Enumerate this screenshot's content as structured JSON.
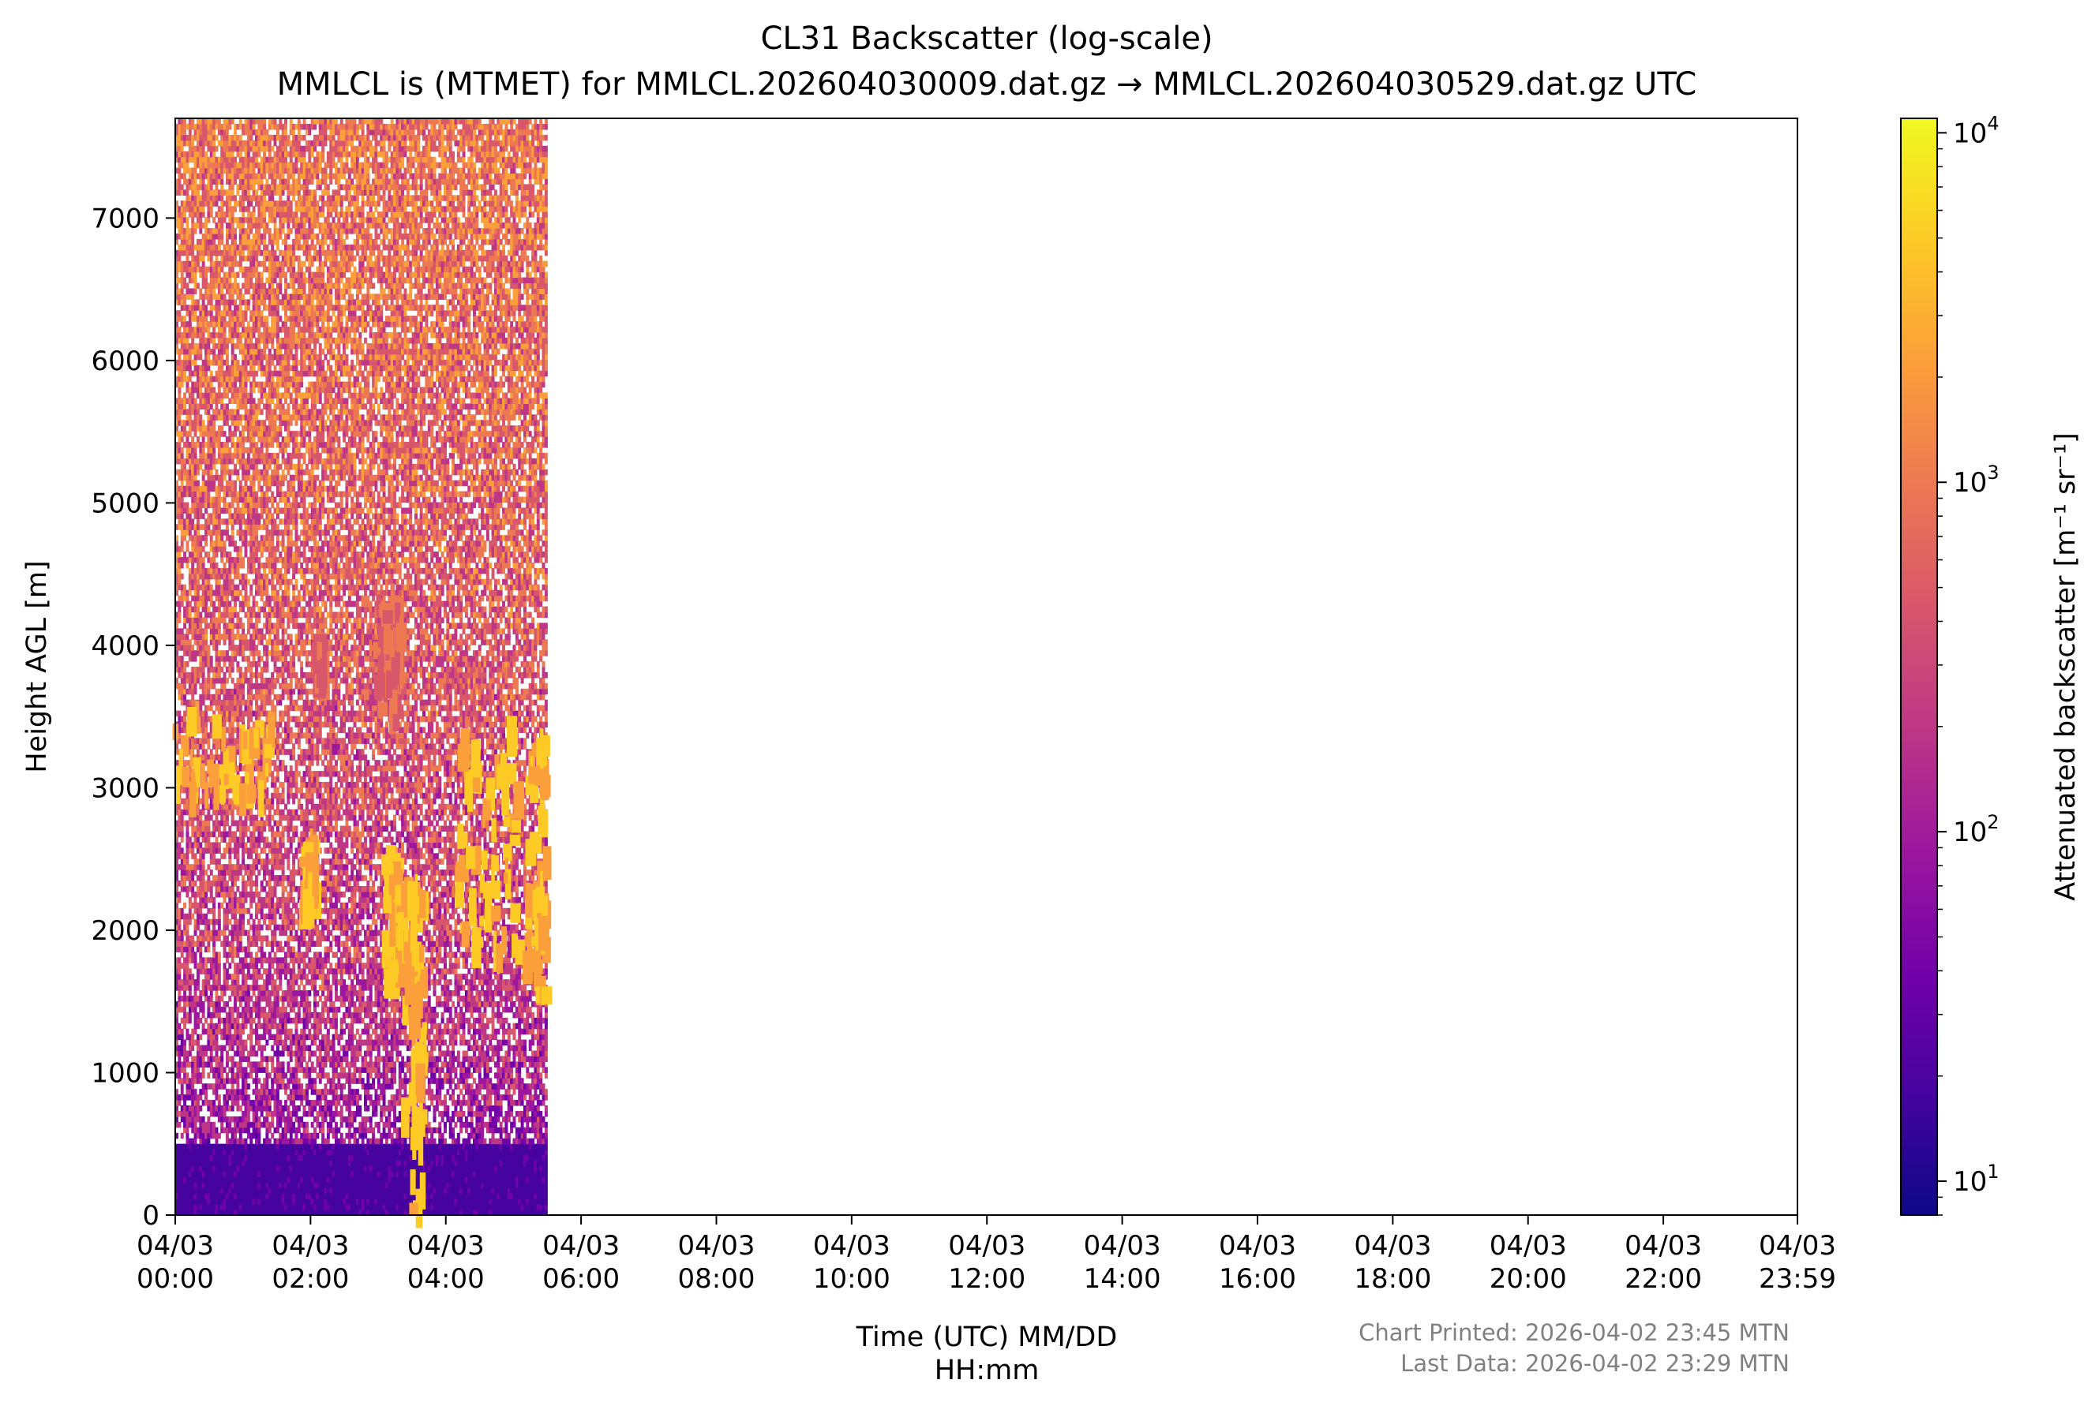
{
  "chart_data": {
    "type": "heatmap",
    "title": "CL31 Backscatter (log-scale)",
    "subtitle": "MMLCL is (MTMET) for MMLCL.202604030009.dat.gz → MMLCL.202604030529.dat.gz UTC",
    "xlabel_line1": "Time (UTC) MM/DD",
    "xlabel_line2": "HH:mm",
    "ylabel": "Height AGL [m]",
    "x_ticks": [
      {
        "hours": 0,
        "date": "04/03",
        "time": "00:00"
      },
      {
        "hours": 2,
        "date": "04/03",
        "time": "02:00"
      },
      {
        "hours": 4,
        "date": "04/03",
        "time": "04:00"
      },
      {
        "hours": 6,
        "date": "04/03",
        "time": "06:00"
      },
      {
        "hours": 8,
        "date": "04/03",
        "time": "08:00"
      },
      {
        "hours": 10,
        "date": "04/03",
        "time": "10:00"
      },
      {
        "hours": 12,
        "date": "04/03",
        "time": "12:00"
      },
      {
        "hours": 14,
        "date": "04/03",
        "time": "14:00"
      },
      {
        "hours": 16,
        "date": "04/03",
        "time": "16:00"
      },
      {
        "hours": 18,
        "date": "04/03",
        "time": "18:00"
      },
      {
        "hours": 20,
        "date": "04/03",
        "time": "20:00"
      },
      {
        "hours": 22,
        "date": "04/03",
        "time": "22:00"
      },
      {
        "hours": 23.983,
        "date": "04/03",
        "time": "23:59"
      }
    ],
    "xlim_hours": [
      0,
      23.983
    ],
    "y_ticks": [
      0,
      1000,
      2000,
      3000,
      4000,
      5000,
      6000,
      7000
    ],
    "ylim": [
      0,
      7700
    ],
    "data_time_range_hours": [
      0.0,
      5.5
    ],
    "colorbar": {
      "label": "Attenuated backscatter [m⁻¹ sr⁻¹]",
      "scale": "log",
      "range": [
        8,
        11000
      ],
      "ticks": [
        {
          "value": 10,
          "label": "10",
          "exp": "1"
        },
        {
          "value": 100,
          "label": "10",
          "exp": "2"
        },
        {
          "value": 1000,
          "label": "10",
          "exp": "3"
        },
        {
          "value": 10000,
          "label": "10",
          "exp": "4"
        }
      ],
      "colormap": "plasma",
      "colors": [
        "#0d0887",
        "#46039f",
        "#7201a8",
        "#9c179e",
        "#bd3786",
        "#d8576b",
        "#ed7953",
        "#fb9f3a",
        "#fdca26",
        "#f0f921"
      ]
    },
    "surface_layer": {
      "height_range": [
        0,
        480
      ],
      "value": 20
    },
    "features": [
      {
        "label": "cloud",
        "t": [
          0.0,
          1.5
        ],
        "h": [
          2900,
          3500
        ],
        "value": 3000
      },
      {
        "label": "cloud",
        "t": [
          1.9,
          2.1
        ],
        "h": [
          2100,
          2600
        ],
        "value": 3000
      },
      {
        "label": "cloud",
        "t": [
          3.1,
          3.4
        ],
        "h": [
          1600,
          2500
        ],
        "value": 3500
      },
      {
        "label": "cloud",
        "t": [
          3.4,
          3.7
        ],
        "h": [
          0,
          2300
        ],
        "value": 4000
      },
      {
        "label": "cloud",
        "t": [
          4.2,
          5.1
        ],
        "h": [
          1800,
          3400
        ],
        "value": 4000
      },
      {
        "label": "cloud",
        "t": [
          5.2,
          5.5
        ],
        "h": [
          1500,
          3300
        ],
        "value": 3000
      },
      {
        "label": "cloud",
        "t": [
          3.0,
          3.35
        ],
        "h": [
          3500,
          4300
        ],
        "value": 800
      },
      {
        "label": "cloud",
        "t": [
          2.1,
          2.2
        ],
        "h": [
          3700,
          4000
        ],
        "value": 600
      }
    ]
  },
  "footer": {
    "printed": "Chart Printed: 2026-04-02 23:45 MTN",
    "last_data": "Last Data: 2026-04-02 23:29 MTN"
  }
}
